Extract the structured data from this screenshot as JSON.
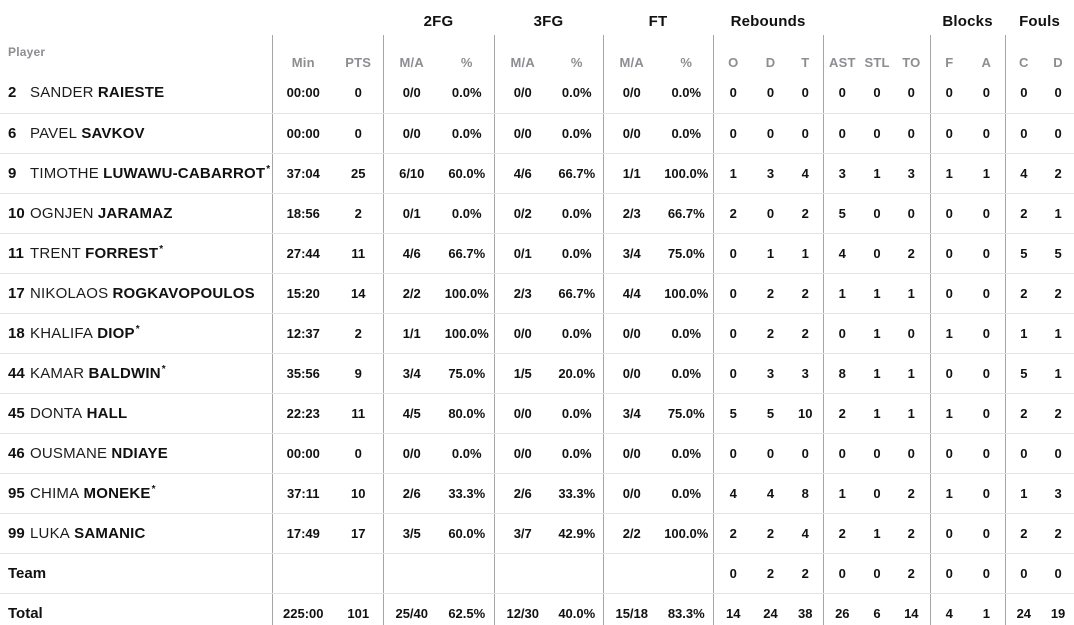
{
  "colors": {
    "text": "#111111",
    "muted_header": "#8D8D92",
    "vertical_line": "#A6A6A6",
    "horizontal_line": "#E4E4E4",
    "background": "#FFFFFF"
  },
  "starter_mark": "*",
  "header": {
    "player_label": "Player",
    "groups": [
      {
        "label": "2FG"
      },
      {
        "label": "3FG"
      },
      {
        "label": "FT"
      },
      {
        "label": "Rebounds"
      },
      {
        "label": "Blocks"
      },
      {
        "label": "Fouls"
      }
    ],
    "cols": [
      "Min",
      "PTS",
      "M/A",
      "%",
      "M/A",
      "%",
      "M/A",
      "%",
      "O",
      "D",
      "T",
      "AST",
      "STL",
      "TO",
      "F",
      "A",
      "C",
      "D"
    ]
  },
  "rows": [
    {
      "num": "2",
      "first": "SANDER",
      "last": "RAIESTE",
      "starter": false,
      "min": "00:00",
      "pts": "0",
      "fg2_ma": "0/0",
      "fg2_pct": "0.0%",
      "fg3_ma": "0/0",
      "fg3_pct": "0.0%",
      "ft_ma": "0/0",
      "ft_pct": "0.0%",
      "reb_o": "0",
      "reb_d": "0",
      "reb_t": "0",
      "ast": "0",
      "stl": "0",
      "to": "0",
      "blk_f": "0",
      "blk_a": "0",
      "foul_c": "0",
      "foul_d": "0"
    },
    {
      "num": "6",
      "first": "PAVEL",
      "last": "SAVKOV",
      "starter": false,
      "min": "00:00",
      "pts": "0",
      "fg2_ma": "0/0",
      "fg2_pct": "0.0%",
      "fg3_ma": "0/0",
      "fg3_pct": "0.0%",
      "ft_ma": "0/0",
      "ft_pct": "0.0%",
      "reb_o": "0",
      "reb_d": "0",
      "reb_t": "0",
      "ast": "0",
      "stl": "0",
      "to": "0",
      "blk_f": "0",
      "blk_a": "0",
      "foul_c": "0",
      "foul_d": "0"
    },
    {
      "num": "9",
      "first": "TIMOTHE",
      "last": "LUWAWU-CABARROT",
      "starter": true,
      "min": "37:04",
      "pts": "25",
      "fg2_ma": "6/10",
      "fg2_pct": "60.0%",
      "fg3_ma": "4/6",
      "fg3_pct": "66.7%",
      "ft_ma": "1/1",
      "ft_pct": "100.0%",
      "reb_o": "1",
      "reb_d": "3",
      "reb_t": "4",
      "ast": "3",
      "stl": "1",
      "to": "3",
      "blk_f": "1",
      "blk_a": "1",
      "foul_c": "4",
      "foul_d": "2"
    },
    {
      "num": "10",
      "first": "OGNJEN",
      "last": "JARAMAZ",
      "starter": false,
      "min": "18:56",
      "pts": "2",
      "fg2_ma": "0/1",
      "fg2_pct": "0.0%",
      "fg3_ma": "0/2",
      "fg3_pct": "0.0%",
      "ft_ma": "2/3",
      "ft_pct": "66.7%",
      "reb_o": "2",
      "reb_d": "0",
      "reb_t": "2",
      "ast": "5",
      "stl": "0",
      "to": "0",
      "blk_f": "0",
      "blk_a": "0",
      "foul_c": "2",
      "foul_d": "1"
    },
    {
      "num": "11",
      "first": "TRENT",
      "last": "FORREST",
      "starter": true,
      "min": "27:44",
      "pts": "11",
      "fg2_ma": "4/6",
      "fg2_pct": "66.7%",
      "fg3_ma": "0/1",
      "fg3_pct": "0.0%",
      "ft_ma": "3/4",
      "ft_pct": "75.0%",
      "reb_o": "0",
      "reb_d": "1",
      "reb_t": "1",
      "ast": "4",
      "stl": "0",
      "to": "2",
      "blk_f": "0",
      "blk_a": "0",
      "foul_c": "5",
      "foul_d": "5"
    },
    {
      "num": "17",
      "first": "NIKOLAOS",
      "last": "ROGKAVOPOULOS",
      "starter": false,
      "min": "15:20",
      "pts": "14",
      "fg2_ma": "2/2",
      "fg2_pct": "100.0%",
      "fg3_ma": "2/3",
      "fg3_pct": "66.7%",
      "ft_ma": "4/4",
      "ft_pct": "100.0%",
      "reb_o": "0",
      "reb_d": "2",
      "reb_t": "2",
      "ast": "1",
      "stl": "1",
      "to": "1",
      "blk_f": "0",
      "blk_a": "0",
      "foul_c": "2",
      "foul_d": "2"
    },
    {
      "num": "18",
      "first": "KHALIFA",
      "last": "DIOP",
      "starter": true,
      "min": "12:37",
      "pts": "2",
      "fg2_ma": "1/1",
      "fg2_pct": "100.0%",
      "fg3_ma": "0/0",
      "fg3_pct": "0.0%",
      "ft_ma": "0/0",
      "ft_pct": "0.0%",
      "reb_o": "0",
      "reb_d": "2",
      "reb_t": "2",
      "ast": "0",
      "stl": "1",
      "to": "0",
      "blk_f": "1",
      "blk_a": "0",
      "foul_c": "1",
      "foul_d": "1"
    },
    {
      "num": "44",
      "first": "KAMAR",
      "last": "BALDWIN",
      "starter": true,
      "min": "35:56",
      "pts": "9",
      "fg2_ma": "3/4",
      "fg2_pct": "75.0%",
      "fg3_ma": "1/5",
      "fg3_pct": "20.0%",
      "ft_ma": "0/0",
      "ft_pct": "0.0%",
      "reb_o": "0",
      "reb_d": "3",
      "reb_t": "3",
      "ast": "8",
      "stl": "1",
      "to": "1",
      "blk_f": "0",
      "blk_a": "0",
      "foul_c": "5",
      "foul_d": "1"
    },
    {
      "num": "45",
      "first": "DONTA",
      "last": "HALL",
      "starter": false,
      "min": "22:23",
      "pts": "11",
      "fg2_ma": "4/5",
      "fg2_pct": "80.0%",
      "fg3_ma": "0/0",
      "fg3_pct": "0.0%",
      "ft_ma": "3/4",
      "ft_pct": "75.0%",
      "reb_o": "5",
      "reb_d": "5",
      "reb_t": "10",
      "ast": "2",
      "stl": "1",
      "to": "1",
      "blk_f": "1",
      "blk_a": "0",
      "foul_c": "2",
      "foul_d": "2"
    },
    {
      "num": "46",
      "first": "OUSMANE",
      "last": "NDIAYE",
      "starter": false,
      "min": "00:00",
      "pts": "0",
      "fg2_ma": "0/0",
      "fg2_pct": "0.0%",
      "fg3_ma": "0/0",
      "fg3_pct": "0.0%",
      "ft_ma": "0/0",
      "ft_pct": "0.0%",
      "reb_o": "0",
      "reb_d": "0",
      "reb_t": "0",
      "ast": "0",
      "stl": "0",
      "to": "0",
      "blk_f": "0",
      "blk_a": "0",
      "foul_c": "0",
      "foul_d": "0"
    },
    {
      "num": "95",
      "first": "CHIMA",
      "last": "MONEKE",
      "starter": true,
      "min": "37:11",
      "pts": "10",
      "fg2_ma": "2/6",
      "fg2_pct": "33.3%",
      "fg3_ma": "2/6",
      "fg3_pct": "33.3%",
      "ft_ma": "0/0",
      "ft_pct": "0.0%",
      "reb_o": "4",
      "reb_d": "4",
      "reb_t": "8",
      "ast": "1",
      "stl": "0",
      "to": "2",
      "blk_f": "1",
      "blk_a": "0",
      "foul_c": "1",
      "foul_d": "3"
    },
    {
      "num": "99",
      "first": "LUKA",
      "last": "SAMANIC",
      "starter": false,
      "min": "17:49",
      "pts": "17",
      "fg2_ma": "3/5",
      "fg2_pct": "60.0%",
      "fg3_ma": "3/7",
      "fg3_pct": "42.9%",
      "ft_ma": "2/2",
      "ft_pct": "100.0%",
      "reb_o": "2",
      "reb_d": "2",
      "reb_t": "4",
      "ast": "2",
      "stl": "1",
      "to": "2",
      "blk_f": "0",
      "blk_a": "0",
      "foul_c": "2",
      "foul_d": "2"
    },
    {
      "label": "Team",
      "min": "",
      "pts": "",
      "fg2_ma": "",
      "fg2_pct": "",
      "fg3_ma": "",
      "fg3_pct": "",
      "ft_ma": "",
      "ft_pct": "",
      "reb_o": "0",
      "reb_d": "2",
      "reb_t": "2",
      "ast": "0",
      "stl": "0",
      "to": "2",
      "blk_f": "0",
      "blk_a": "0",
      "foul_c": "0",
      "foul_d": "0"
    },
    {
      "label": "Total",
      "min": "225:00",
      "pts": "101",
      "fg2_ma": "25/40",
      "fg2_pct": "62.5%",
      "fg3_ma": "12/30",
      "fg3_pct": "40.0%",
      "ft_ma": "15/18",
      "ft_pct": "83.3%",
      "reb_o": "14",
      "reb_d": "24",
      "reb_t": "38",
      "ast": "26",
      "stl": "6",
      "to": "14",
      "blk_f": "4",
      "blk_a": "1",
      "foul_c": "24",
      "foul_d": "19"
    }
  ]
}
